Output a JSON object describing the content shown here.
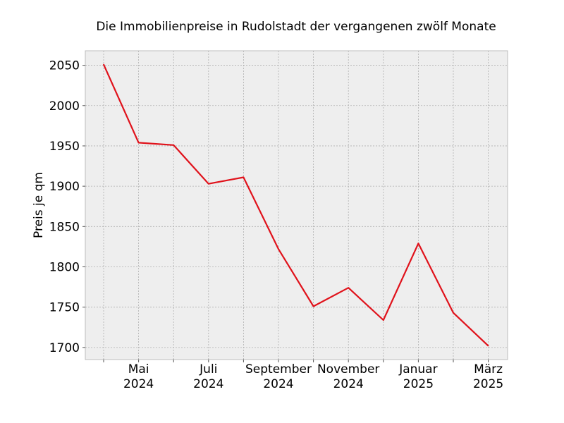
{
  "chart_data": {
    "type": "line",
    "title": "Die Immobilienpreise in Rudolstadt der vergangenen zwölf Monate",
    "xlabel": "",
    "ylabel": "Preis je qm",
    "x": [
      "2024-04",
      "2024-05",
      "2024-06",
      "2024-07",
      "2024-08",
      "2024-09",
      "2024-10",
      "2024-11",
      "2024-12",
      "2025-01",
      "2025-02",
      "2025-03"
    ],
    "series": [
      {
        "values": [
          2051,
          1954,
          1951,
          1903,
          1911,
          1822,
          1751,
          1774,
          1734,
          1829,
          1743,
          1702
        ]
      }
    ],
    "ylim": [
      1685,
      2068
    ],
    "yticks": [
      1700,
      1750,
      1800,
      1850,
      1900,
      1950,
      2000,
      2050
    ],
    "xtick_labels": [
      {
        "line1": "Mai",
        "line2": "2024"
      },
      {
        "line1": "Juli",
        "line2": "2024"
      },
      {
        "line1": "September",
        "line2": "2024"
      },
      {
        "line1": "November",
        "line2": "2024"
      },
      {
        "line1": "Januar",
        "line2": "2025"
      },
      {
        "line1": "März",
        "line2": "2025"
      }
    ],
    "grid": true,
    "colors": {
      "line": "#e0121b",
      "plot_bg": "#eeeeee",
      "grid": "#b0b0b0"
    }
  }
}
